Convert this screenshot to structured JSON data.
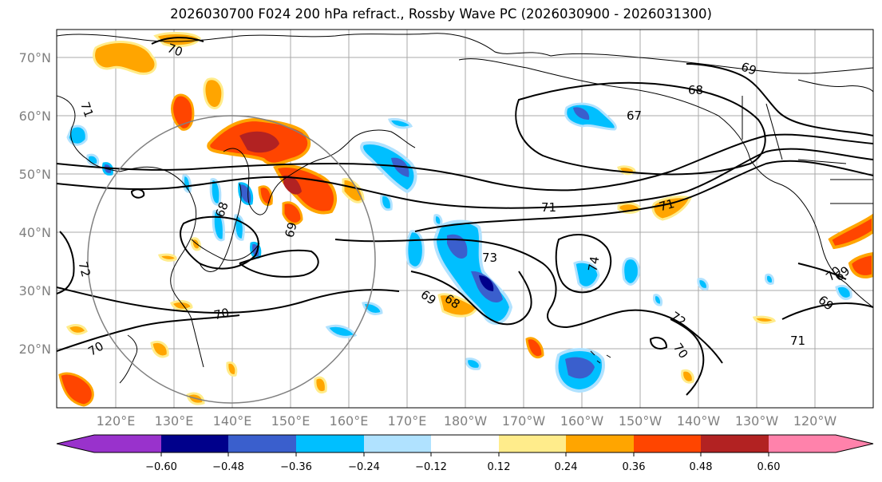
{
  "title": "2026030700 F024 200 hPa refract., Rossby Wave PC (2026030900 - 2026031300)",
  "lat_ticks": [
    "70°N",
    "60°N",
    "50°N",
    "40°N",
    "30°N",
    "20°N"
  ],
  "lon_ticks": [
    "120°E",
    "130°E",
    "140°E",
    "150°E",
    "160°E",
    "170°E",
    "180°W",
    "170°W",
    "160°W",
    "150°W",
    "140°W",
    "130°W",
    "120°W"
  ],
  "colorbar": {
    "tick_labels": [
      "−0.60",
      "−0.48",
      "−0.36",
      "−0.24",
      "−0.12",
      "0.12",
      "0.24",
      "0.36",
      "0.48",
      "0.60"
    ],
    "colors": [
      "#9932cc",
      "#00008b",
      "#3a5fcd",
      "#00bfff",
      "#b0e2ff",
      "#ffffff",
      "#ffec8b",
      "#ffa500",
      "#ff4500",
      "#b22222",
      "#ff82ab"
    ]
  },
  "contour_labels": [
    "70",
    "71",
    "71",
    "71",
    "72",
    "68",
    "69",
    "69",
    "67",
    "68",
    "73",
    "74",
    "69",
    "68",
    "69",
    "72",
    "70",
    "70",
    "71",
    "70",
    "70",
    "69"
  ]
}
